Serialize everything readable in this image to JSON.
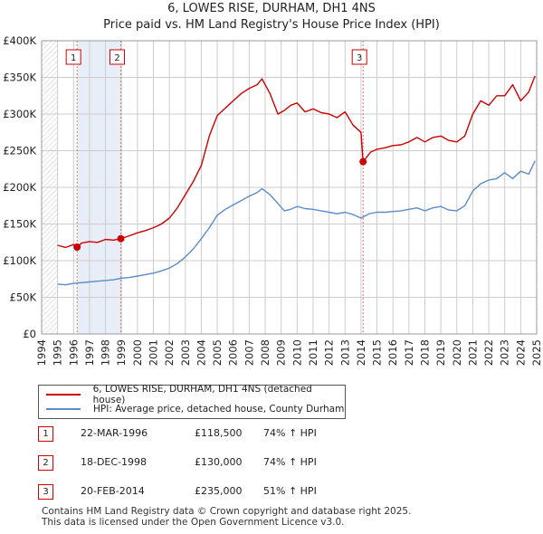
{
  "title": "6, LOWES RISE, DURHAM, DH1 4NS",
  "subtitle": "Price paid vs. HM Land Registry's House Price Index (HPI)",
  "chart_data": {
    "type": "line",
    "title": "6, LOWES RISE, DURHAM, DH1 4NS",
    "subtitle": "Price paid vs. HM Land Registry's House Price Index (HPI)",
    "xlabel": "",
    "ylabel": "",
    "xlim": [
      1994,
      2025
    ],
    "ylim": [
      0,
      400000
    ],
    "x_ticks": [
      "1994",
      "1995",
      "1996",
      "1997",
      "1998",
      "1999",
      "2000",
      "2001",
      "2002",
      "2003",
      "2004",
      "2005",
      "2006",
      "2007",
      "2008",
      "2009",
      "2010",
      "2011",
      "2012",
      "2013",
      "2014",
      "2015",
      "2016",
      "2017",
      "2018",
      "2019",
      "2020",
      "2021",
      "2022",
      "2023",
      "2024",
      "2025"
    ],
    "y_ticks": [
      {
        "value": 0,
        "label": "£0"
      },
      {
        "value": 50000,
        "label": "£50K"
      },
      {
        "value": 100000,
        "label": "£100K"
      },
      {
        "value": 150000,
        "label": "£150K"
      },
      {
        "value": 200000,
        "label": "£200K"
      },
      {
        "value": 250000,
        "label": "£250K"
      },
      {
        "value": 300000,
        "label": "£300K"
      },
      {
        "value": 350000,
        "label": "£350K"
      },
      {
        "value": 400000,
        "label": "£400K"
      }
    ],
    "grid": true,
    "colors": {
      "property": "#cc0000",
      "hpi": "#5b8cc8",
      "shade": "#e8eef7",
      "grid": "#cccccc",
      "marker_line": "#e07070"
    },
    "series": [
      {
        "name": "6, LOWES RISE, DURHAM, DH1 4NS (detached house)",
        "x": [
          1995.0,
          1995.5,
          1996.0,
          1996.22,
          1996.5,
          1997.0,
          1997.5,
          1998.0,
          1998.5,
          1998.96,
          1999.5,
          2000.0,
          2000.5,
          2001.0,
          2001.5,
          2002.0,
          2002.5,
          2003.0,
          2003.5,
          2004.0,
          2004.5,
          2005.0,
          2005.5,
          2006.0,
          2006.5,
          2007.0,
          2007.5,
          2007.8,
          2008.3,
          2008.8,
          2009.2,
          2009.6,
          2010.0,
          2010.5,
          2011.0,
          2011.5,
          2012.0,
          2012.5,
          2013.0,
          2013.5,
          2014.0,
          2014.13,
          2014.6,
          2015.0,
          2015.5,
          2016.0,
          2016.5,
          2017.0,
          2017.5,
          2018.0,
          2018.5,
          2019.0,
          2019.5,
          2020.0,
          2020.5,
          2021.0,
          2021.5,
          2022.0,
          2022.5,
          2023.0,
          2023.5,
          2024.0,
          2024.5,
          2024.9
        ],
        "y": [
          121000,
          118000,
          122000,
          118500,
          124000,
          126000,
          125000,
          129000,
          128000,
          130000,
          134000,
          138000,
          141000,
          145000,
          150000,
          158000,
          172000,
          190000,
          208000,
          230000,
          270000,
          298000,
          308000,
          318000,
          328000,
          335000,
          340000,
          348000,
          328000,
          300000,
          305000,
          312000,
          315000,
          303000,
          307000,
          302000,
          300000,
          295000,
          303000,
          285000,
          275000,
          235000,
          248000,
          252000,
          254000,
          257000,
          258000,
          262000,
          268000,
          262000,
          268000,
          270000,
          264000,
          262000,
          270000,
          300000,
          318000,
          312000,
          325000,
          325000,
          340000,
          318000,
          330000,
          352000
        ]
      },
      {
        "name": "HPI: Average price, detached house, County Durham",
        "x": [
          1995.0,
          1995.5,
          1996.0,
          1996.5,
          1997.0,
          1997.5,
          1998.0,
          1998.5,
          1999.0,
          1999.5,
          2000.0,
          2000.5,
          2001.0,
          2001.5,
          2002.0,
          2002.5,
          2003.0,
          2003.5,
          2004.0,
          2004.5,
          2005.0,
          2005.5,
          2006.0,
          2006.5,
          2007.0,
          2007.5,
          2007.8,
          2008.3,
          2008.8,
          2009.2,
          2009.6,
          2010.0,
          2010.5,
          2011.0,
          2011.5,
          2012.0,
          2012.5,
          2013.0,
          2013.5,
          2014.0,
          2014.5,
          2015.0,
          2015.5,
          2016.0,
          2016.5,
          2017.0,
          2017.5,
          2018.0,
          2018.5,
          2019.0,
          2019.5,
          2020.0,
          2020.5,
          2021.0,
          2021.5,
          2022.0,
          2022.5,
          2023.0,
          2023.5,
          2024.0,
          2024.5,
          2024.9
        ],
        "y": [
          68000,
          67000,
          69000,
          70000,
          71000,
          72000,
          73000,
          74000,
          76000,
          77000,
          79000,
          81000,
          83000,
          86000,
          90000,
          96000,
          105000,
          116000,
          130000,
          145000,
          162000,
          170000,
          176000,
          182000,
          188000,
          193000,
          198000,
          190000,
          178000,
          168000,
          170000,
          174000,
          171000,
          170000,
          168000,
          166000,
          164000,
          166000,
          163000,
          158000,
          164000,
          166000,
          166000,
          167000,
          168000,
          170000,
          172000,
          168000,
          172000,
          174000,
          169000,
          168000,
          175000,
          195000,
          205000,
          210000,
          212000,
          220000,
          212000,
          222000,
          218000,
          236000
        ]
      }
    ],
    "sales": [
      {
        "label": "1",
        "x": 1996.22,
        "y": 118500
      },
      {
        "label": "2",
        "x": 1998.96,
        "y": 130000
      },
      {
        "label": "3",
        "x": 2014.13,
        "y": 235000
      }
    ],
    "legend": [
      "6, LOWES RISE, DURHAM, DH1 4NS (detached house)",
      "HPI: Average price, detached house, County Durham"
    ]
  },
  "legend": {
    "property_label": "6, LOWES RISE, DURHAM, DH1 4NS (detached house)",
    "hpi_label": "HPI: Average price, detached house, County Durham"
  },
  "sales_table": [
    {
      "num": "1",
      "date": "22-MAR-1996",
      "price": "£118,500",
      "hpi": "74% ↑ HPI"
    },
    {
      "num": "2",
      "date": "18-DEC-1998",
      "price": "£130,000",
      "hpi": "74% ↑ HPI"
    },
    {
      "num": "3",
      "date": "20-FEB-2014",
      "price": "£235,000",
      "hpi": "51% ↑ HPI"
    }
  ],
  "footer": {
    "line1": "Contains HM Land Registry data © Crown copyright and database right 2025.",
    "line2": "This data is licensed under the Open Government Licence v3.0."
  }
}
